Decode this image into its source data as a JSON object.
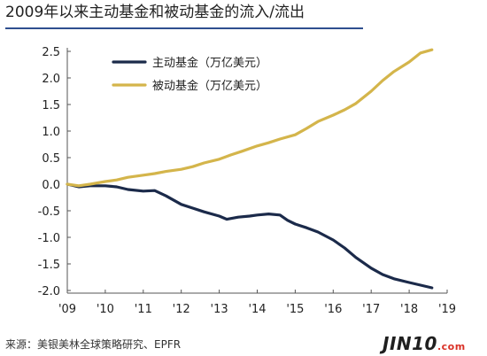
{
  "title": "2009年以来主动基金和被动基金的流入/流出",
  "source": "来源：美银美林全球策略研究、EPFR",
  "watermark": {
    "text": "JIN10",
    "suffix": ".com"
  },
  "colors": {
    "active": "#1b2a4a",
    "passive": "#d4b54b",
    "title_rule": "#2f4f8f"
  },
  "chart_data": {
    "type": "line",
    "title": "2009年以来主动基金和被动基金的流入/流出",
    "xlabel": "",
    "ylabel": "",
    "x_ticks": [
      "'09",
      "'10",
      "'11",
      "'12",
      "'13",
      "'14",
      "'15",
      "'16",
      "'17",
      "'18",
      "'19"
    ],
    "x_tick_values": [
      2009,
      2010,
      2011,
      2012,
      2013,
      2014,
      2015,
      2016,
      2017,
      2018,
      2019
    ],
    "y_ticks": [
      "2.5",
      "2.0",
      "1.5",
      "1.0",
      "0.5",
      "0.0",
      "-0.5",
      "-1.0",
      "-1.5",
      "-2.0"
    ],
    "y_tick_values": [
      2.5,
      2.0,
      1.5,
      1.0,
      0.5,
      0.0,
      -0.5,
      -1.0,
      -1.5,
      -2.0
    ],
    "xlim": [
      2009,
      2019
    ],
    "ylim": [
      -2.0,
      2.5
    ],
    "grid": false,
    "legend_position": "top-left",
    "series": [
      {
        "name": "主动基金（万亿美元）",
        "color": "#1b2a4a",
        "x": [
          2009.0,
          2009.3,
          2009.6,
          2010.0,
          2010.3,
          2010.6,
          2011.0,
          2011.3,
          2011.6,
          2012.0,
          2012.3,
          2012.6,
          2013.0,
          2013.2,
          2013.5,
          2013.8,
          2014.0,
          2014.3,
          2014.6,
          2014.8,
          2015.0,
          2015.3,
          2015.6,
          2016.0,
          2016.3,
          2016.6,
          2017.0,
          2017.3,
          2017.6,
          2018.0,
          2018.3,
          2018.6
        ],
        "y": [
          0.0,
          -0.05,
          -0.03,
          -0.03,
          -0.05,
          -0.1,
          -0.13,
          -0.12,
          -0.22,
          -0.38,
          -0.45,
          -0.52,
          -0.6,
          -0.66,
          -0.62,
          -0.6,
          -0.58,
          -0.56,
          -0.58,
          -0.68,
          -0.75,
          -0.82,
          -0.9,
          -1.05,
          -1.2,
          -1.38,
          -1.58,
          -1.7,
          -1.78,
          -1.85,
          -1.9,
          -1.95
        ]
      },
      {
        "name": "被动基金（万亿美元）",
        "color": "#d4b54b",
        "x": [
          2009.0,
          2009.3,
          2009.6,
          2010.0,
          2010.3,
          2010.6,
          2011.0,
          2011.3,
          2011.6,
          2012.0,
          2012.3,
          2012.6,
          2013.0,
          2013.3,
          2013.6,
          2014.0,
          2014.3,
          2014.6,
          2015.0,
          2015.3,
          2015.6,
          2016.0,
          2016.3,
          2016.6,
          2017.0,
          2017.3,
          2017.6,
          2018.0,
          2018.3,
          2018.6
        ],
        "y": [
          0.0,
          -0.03,
          0.0,
          0.05,
          0.08,
          0.13,
          0.17,
          0.2,
          0.24,
          0.28,
          0.33,
          0.4,
          0.47,
          0.55,
          0.62,
          0.72,
          0.78,
          0.85,
          0.93,
          1.05,
          1.18,
          1.3,
          1.4,
          1.52,
          1.75,
          1.95,
          2.12,
          2.3,
          2.47,
          2.53
        ]
      }
    ]
  }
}
